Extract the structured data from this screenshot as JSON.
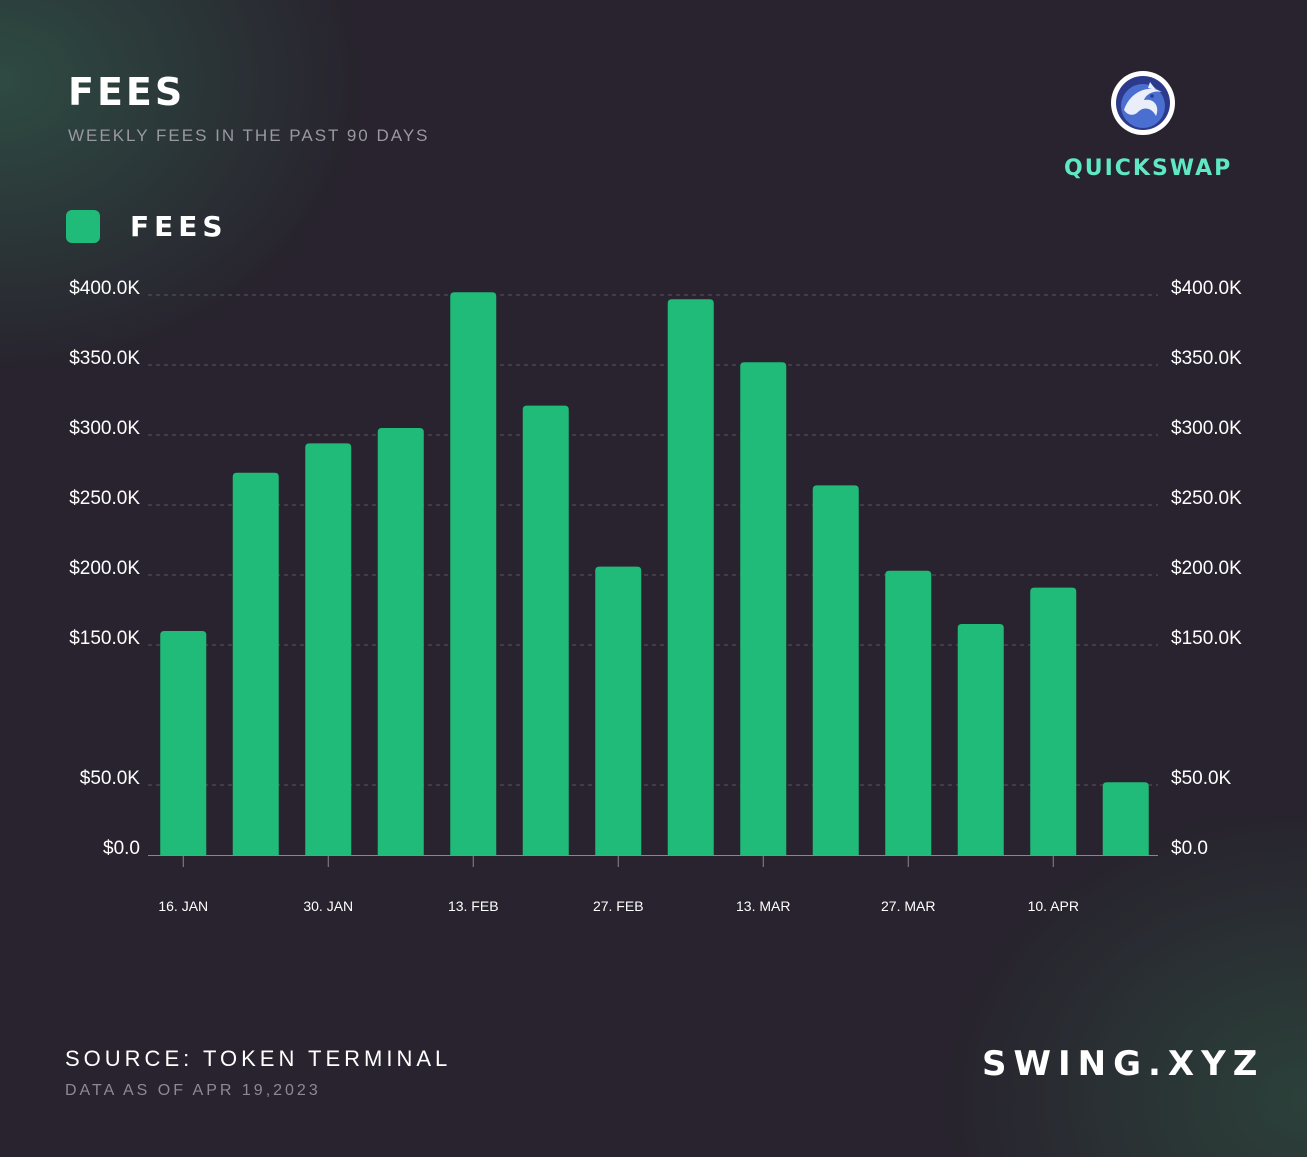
{
  "header": {
    "title": "FEES",
    "subtitle": "WEEKLY FEES IN THE PAST 90 DAYS"
  },
  "brand": {
    "name": "QUICKSWAP",
    "logo_icon": "quickswap-dragon-logo-icon",
    "name_color": "#5fe8c4"
  },
  "legend": {
    "label": "FEES",
    "color": "#21bb79"
  },
  "footer": {
    "source": "SOURCE: TOKEN TERMINAL",
    "as_of": "DATA AS OF APR 19,2023",
    "site": "SWING.XYZ"
  },
  "chart_data": {
    "type": "bar",
    "title": "FEES",
    "subtitle": "WEEKLY FEES IN THE PAST 90 DAYS",
    "x_tick_labels": [
      "16. JAN",
      "30. JAN",
      "13. FEB",
      "27. FEB",
      "13. MAR",
      "27. MAR",
      "10. APR"
    ],
    "x_tick_bar_index": [
      0,
      2,
      4,
      6,
      8,
      10,
      12
    ],
    "series": [
      {
        "name": "FEES",
        "color": "#21bb79",
        "values": [
          160000,
          273000,
          294000,
          305000,
          402000,
          321000,
          206000,
          397000,
          352000,
          264000,
          203000,
          165000,
          191000,
          52000
        ]
      }
    ],
    "y_axis": {
      "ticks": [
        0,
        50000,
        150000,
        200000,
        250000,
        300000,
        350000,
        400000
      ],
      "tick_labels": [
        "$0.0",
        "$50.0K",
        "$150.0K",
        "$200.0K",
        "$250.0K",
        "$300.0K",
        "$350.0K",
        "$400.0K"
      ],
      "note_min": 0,
      "note_max": 400000,
      "dual_axis": true
    },
    "grid": true,
    "legend_position": "top-left"
  }
}
